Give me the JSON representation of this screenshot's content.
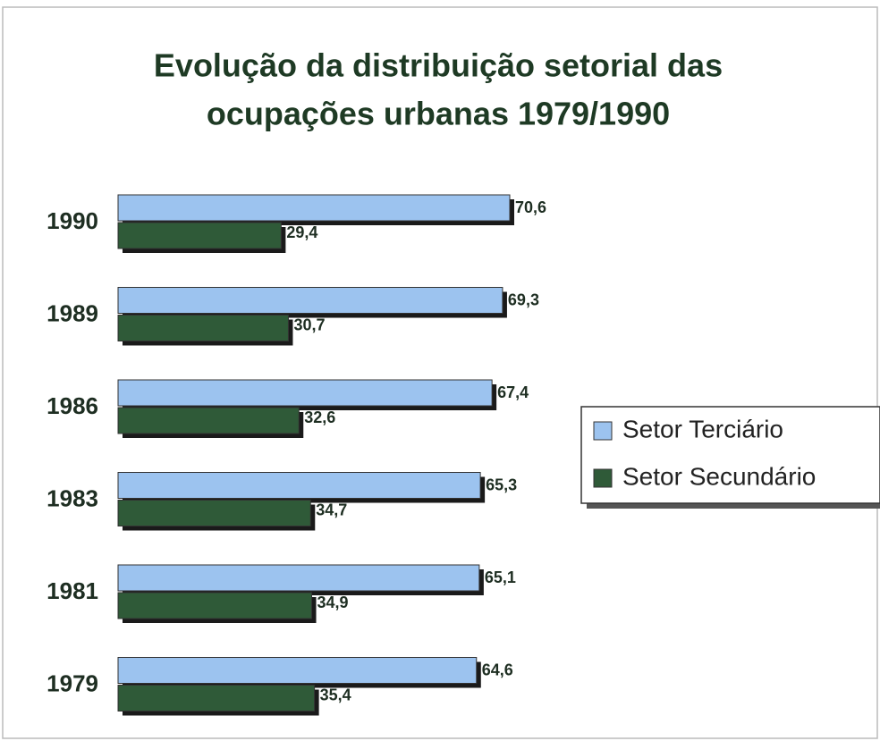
{
  "chart_data": {
    "type": "hbar",
    "title": [
      "Evolução da distribuição setorial das",
      "ocupações urbanas 1979/1990"
    ],
    "categories": [
      "1990",
      "1989",
      "1986",
      "1983",
      "1981",
      "1979"
    ],
    "series": [
      {
        "name": "Setor Terciário",
        "color": "#9cc3ef",
        "values": [
          70.6,
          69.3,
          67.4,
          65.3,
          65.1,
          64.6
        ],
        "value_labels": [
          "70,6",
          "69,3",
          "67,4",
          "65,3",
          "65,1",
          "64,6"
        ]
      },
      {
        "name": "Setor Secundário",
        "color": "#2f5a38",
        "values": [
          29.4,
          30.7,
          32.6,
          34.7,
          34.9,
          35.4
        ],
        "value_labels": [
          "29,4",
          "30,7",
          "32,6",
          "34,7",
          "34,9",
          "35,4"
        ]
      }
    ],
    "legend": "right"
  }
}
